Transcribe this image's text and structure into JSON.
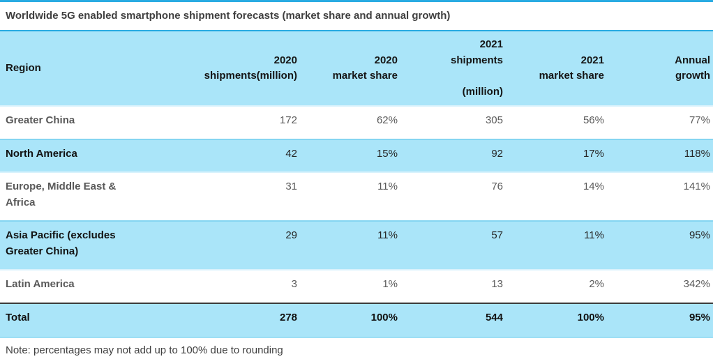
{
  "colors": {
    "accent_line": "#29abe2",
    "highlight_row": "#aae5f9",
    "muted_text": "#595959",
    "dark_text": "#1a1a1a",
    "total_rule": "#3b3b3b"
  },
  "chart_data": {
    "type": "table",
    "title": "Worldwide 5G enabled smartphone shipment forecasts (market share and annual growth)",
    "columns": [
      "Region",
      "2020\nshipments(million)",
      "2020\nmarket share",
      "2021\nshipments\n\n(million)",
      "2021\nmarket share",
      "Annual\ngrowth"
    ],
    "rows": [
      {
        "region": "Greater China",
        "shipments_2020": "172",
        "share_2020": "62%",
        "shipments_2021": "305",
        "share_2021": "56%",
        "growth": "77%"
      },
      {
        "region": "North America",
        "shipments_2020": "42",
        "share_2020": "15%",
        "shipments_2021": "92",
        "share_2021": "17%",
        "growth": "118%"
      },
      {
        "region": "Europe, Middle East & Africa",
        "shipments_2020": "31",
        "share_2020": "11%",
        "shipments_2021": "76",
        "share_2021": "14%",
        "growth": "141%"
      },
      {
        "region": "Asia Pacific (excludes Greater China)",
        "shipments_2020": "29",
        "share_2020": "11%",
        "shipments_2021": "57",
        "share_2021": "11%",
        "growth": "95%"
      },
      {
        "region": "Latin America",
        "shipments_2020": "3",
        "share_2020": "1%",
        "shipments_2021": "13",
        "share_2021": "2%",
        "growth": "342%"
      }
    ],
    "total": {
      "region": "Total",
      "shipments_2020": "278",
      "share_2020": "100%",
      "shipments_2021": "544",
      "share_2021": "100%",
      "growth": "95%"
    },
    "note": "Note: percentages may not add up to 100% due to rounding"
  }
}
